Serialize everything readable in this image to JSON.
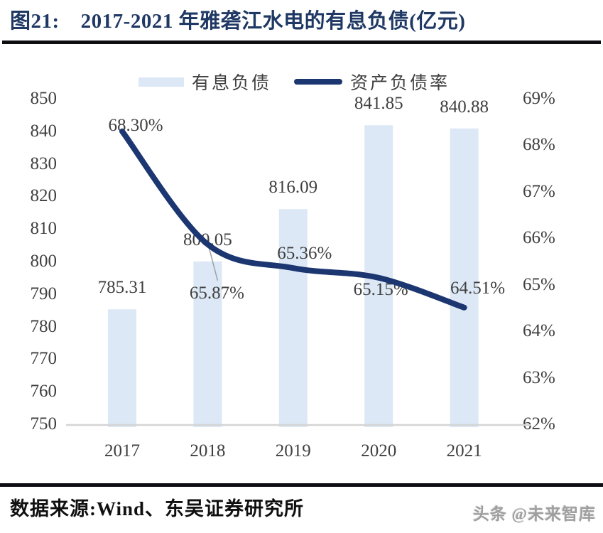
{
  "header": {
    "figure_label": "图21:",
    "title": "2017-2021 年雅砻江水电的有息负债(亿元)"
  },
  "chart_data": {
    "type": "combo-bar-line",
    "categories": [
      "2017",
      "2018",
      "2019",
      "2020",
      "2021"
    ],
    "series": [
      {
        "name": "有息负债",
        "type": "bar",
        "axis": "left",
        "values": [
          785.31,
          800.05,
          816.09,
          841.85,
          840.88
        ],
        "labels": [
          "785.31",
          "800.05",
          "816.09",
          "841.85",
          "840.88"
        ],
        "color": "#dce8f5"
      },
      {
        "name": "资产负债率",
        "type": "line",
        "axis": "right",
        "values": [
          68.3,
          65.87,
          65.36,
          65.15,
          64.51
        ],
        "labels": [
          "68.30%",
          "65.87%",
          "65.36%",
          "65.15%",
          "64.51%"
        ],
        "color": "#1b3670"
      }
    ],
    "left_axis": {
      "min": 750,
      "max": 850,
      "step": 10,
      "ticks": [
        "850",
        "840",
        "830",
        "820",
        "810",
        "800",
        "790",
        "780",
        "770",
        "760",
        "750"
      ]
    },
    "right_axis": {
      "min": 62,
      "max": 69,
      "step": 1,
      "ticks": [
        "69%",
        "68%",
        "67%",
        "66%",
        "65%",
        "64%",
        "63%",
        "62%"
      ]
    },
    "legend_position": "top",
    "grid": false,
    "axis_line_color": "#d4d4d4",
    "label_color": "#3f3f3f"
  },
  "footer": {
    "source": "数据来源:Wind、东吴证券研究所",
    "watermark": "头条 @未来智库"
  }
}
